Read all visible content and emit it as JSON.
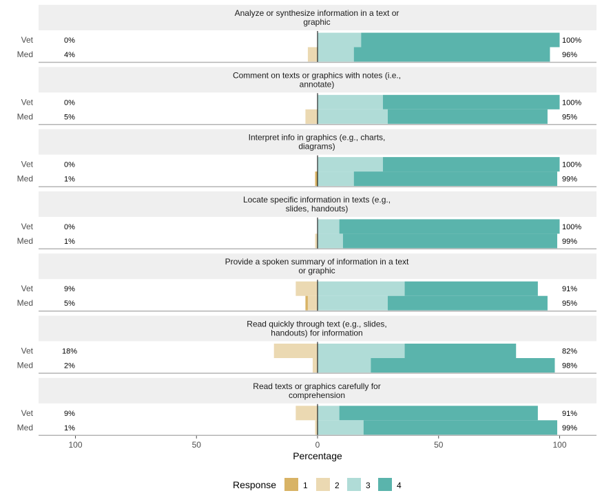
{
  "chart_data": {
    "type": "bar",
    "subtype": "diverging-stacked-horizontal",
    "xlabel": "Percentage",
    "xlim": [
      -100,
      100
    ],
    "x_ticks": [
      {
        "value": -100,
        "label": "100"
      },
      {
        "value": -50,
        "label": "50"
      },
      {
        "value": 0,
        "label": "0"
      },
      {
        "value": 50,
        "label": "50"
      },
      {
        "value": 100,
        "label": "100"
      }
    ],
    "legend": {
      "title": "Response",
      "position": "bottom",
      "entries": [
        {
          "label": "1",
          "color": "#d8b365"
        },
        {
          "label": "2",
          "color": "#ebd9b2"
        },
        {
          "label": "3",
          "color": "#b0dcd7"
        },
        {
          "label": "4",
          "color": "#5ab4ac"
        }
      ]
    },
    "groups": [
      "Vet",
      "Med"
    ],
    "panels": [
      {
        "title": [
          "Analyze or synthesize information in a text or",
          "graphic"
        ],
        "rows": [
          {
            "group": "Vet",
            "r1": 0,
            "r2": 0,
            "r3": 18,
            "r4": 82,
            "left_label": "0%",
            "right_label": "100%"
          },
          {
            "group": "Med",
            "r1": 0,
            "r2": 4,
            "r3": 15,
            "r4": 81,
            "left_label": "4%",
            "right_label": "96%"
          }
        ]
      },
      {
        "title": [
          "Comment on texts or graphics with notes (i.e.,",
          "annotate)"
        ],
        "rows": [
          {
            "group": "Vet",
            "r1": 0,
            "r2": 0,
            "r3": 27,
            "r4": 73,
            "left_label": "0%",
            "right_label": "100%"
          },
          {
            "group": "Med",
            "r1": 0,
            "r2": 5,
            "r3": 29,
            "r4": 66,
            "left_label": "5%",
            "right_label": "95%"
          }
        ]
      },
      {
        "title": [
          "Interpret info in graphics (e.g., charts,",
          "diagrams)"
        ],
        "rows": [
          {
            "group": "Vet",
            "r1": 0,
            "r2": 0,
            "r3": 27,
            "r4": 73,
            "left_label": "0%",
            "right_label": "100%"
          },
          {
            "group": "Med",
            "r1": 1,
            "r2": 0,
            "r3": 15,
            "r4": 84,
            "left_label": "1%",
            "right_label": "99%"
          }
        ]
      },
      {
        "title": [
          "Locate specific information in texts (e.g.,",
          "slides, handouts)"
        ],
        "rows": [
          {
            "group": "Vet",
            "r1": 0,
            "r2": 0,
            "r3": 9,
            "r4": 91,
            "left_label": "0%",
            "right_label": "100%"
          },
          {
            "group": "Med",
            "r1": 0,
            "r2": 1,
            "r3": 10.5,
            "r4": 88.5,
            "left_label": "1%",
            "right_label": "99%"
          }
        ]
      },
      {
        "title": [
          "Provide a spoken summary of information in a text",
          "or graphic"
        ],
        "rows": [
          {
            "group": "Vet",
            "r1": 0,
            "r2": 9,
            "r3": 36,
            "r4": 55,
            "left_label": "9%",
            "right_label": "91%"
          },
          {
            "group": "Med",
            "r1": 1,
            "r2": 4,
            "r3": 29,
            "r4": 66,
            "left_label": "5%",
            "right_label": "95%"
          }
        ]
      },
      {
        "title": [
          "Read quickly through text (e.g., slides,",
          "handouts) for information"
        ],
        "rows": [
          {
            "group": "Vet",
            "r1": 0,
            "r2": 18,
            "r3": 36,
            "r4": 46,
            "left_label": "18%",
            "right_label": "82%"
          },
          {
            "group": "Med",
            "r1": 0,
            "r2": 2,
            "r3": 22,
            "r4": 76,
            "left_label": "2%",
            "right_label": "98%"
          }
        ]
      },
      {
        "title": [
          "Read texts or graphics carefully for",
          "comprehension"
        ],
        "rows": [
          {
            "group": "Vet",
            "r1": 0,
            "r2": 9,
            "r3": 9,
            "r4": 82,
            "left_label": "9%",
            "right_label": "91%"
          },
          {
            "group": "Med",
            "r1": 0,
            "r2": 1,
            "r3": 19,
            "r4": 80,
            "left_label": "1%",
            "right_label": "99%"
          }
        ]
      }
    ]
  }
}
